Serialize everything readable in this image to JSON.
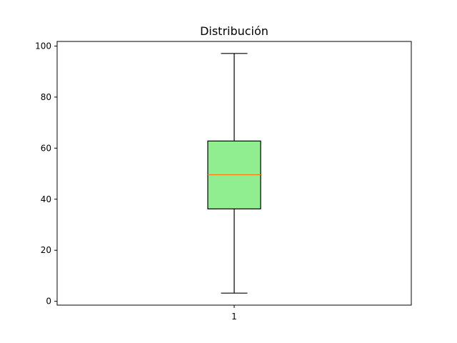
{
  "chart_data": {
    "type": "box",
    "title": "Distribución",
    "xlabel": "",
    "ylabel": "",
    "categories": [
      "1"
    ],
    "ylim": [
      -1.5,
      101.8
    ],
    "yticks": [
      0,
      20,
      40,
      60,
      80,
      100
    ],
    "grid": false,
    "boxes": [
      {
        "category": "1",
        "whisker_low": 3.2,
        "q1": 36.2,
        "median": 49.6,
        "q3": 62.8,
        "whisker_high": 97.1
      }
    ],
    "colors": {
      "box_fill": "#90ee90",
      "median": "#ff7f0e",
      "edge": "#000000"
    }
  }
}
